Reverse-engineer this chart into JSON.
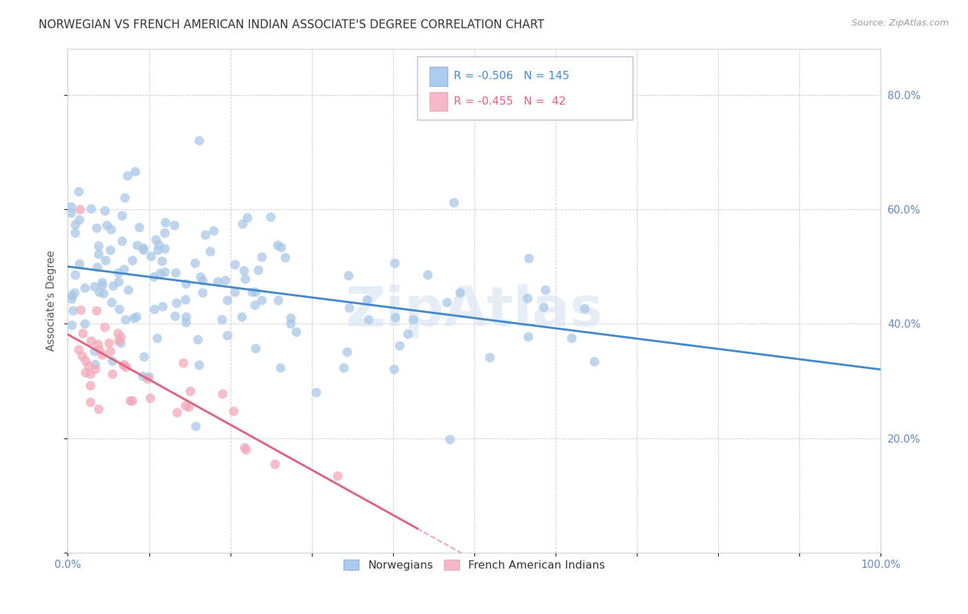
{
  "title": "NORWEGIAN VS FRENCH AMERICAN INDIAN ASSOCIATE'S DEGREE CORRELATION CHART",
  "source": "Source: ZipAtlas.com",
  "ylabel": "Associate's Degree",
  "watermark": "ZipAtlas",
  "blue_R": "-0.506",
  "blue_N": 145,
  "pink_R": "-0.455",
  "pink_N": 42,
  "blue_color": "#a8c8e8",
  "pink_color": "#f4a8b8",
  "blue_line_color": "#4488cc",
  "pink_line_color": "#e06080",
  "bg_color": "#ffffff",
  "grid_color": "#ccccdd",
  "xlim": [
    0.0,
    1.0
  ],
  "ylim": [
    0.0,
    0.88
  ],
  "title_fontsize": 12,
  "axis_fontsize": 11,
  "tick_fontsize": 11,
  "legend_labels": [
    "Norwegians",
    "French American Indians"
  ]
}
